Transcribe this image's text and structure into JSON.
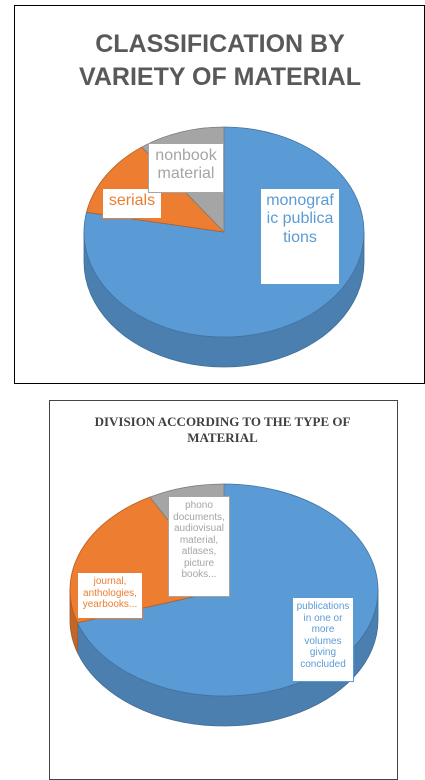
{
  "chart_data": [
    {
      "type": "pie",
      "title": "CLASSIFICATION BY VARIETY OF MATERIAL",
      "categories": [
        "monografic publications",
        "serials",
        "nonbook material"
      ],
      "values": [
        78,
        12,
        10
      ],
      "colors": [
        "#5b9bd5",
        "#ed7d31",
        "#a5a5a5"
      ]
    },
    {
      "type": "pie",
      "title": "DIVISION ACCORDING TO THE TYPE OF MATERIAL",
      "categories": [
        "publications in one or more volumes giving concluded",
        "journal, anthologies, yearbooks...",
        "phono documents, audiovisual material, atlases, picture books..."
      ],
      "values": [
        70,
        22,
        8
      ],
      "colors": [
        "#5b9bd5",
        "#ed7d31",
        "#a5a5a5"
      ]
    }
  ]
}
